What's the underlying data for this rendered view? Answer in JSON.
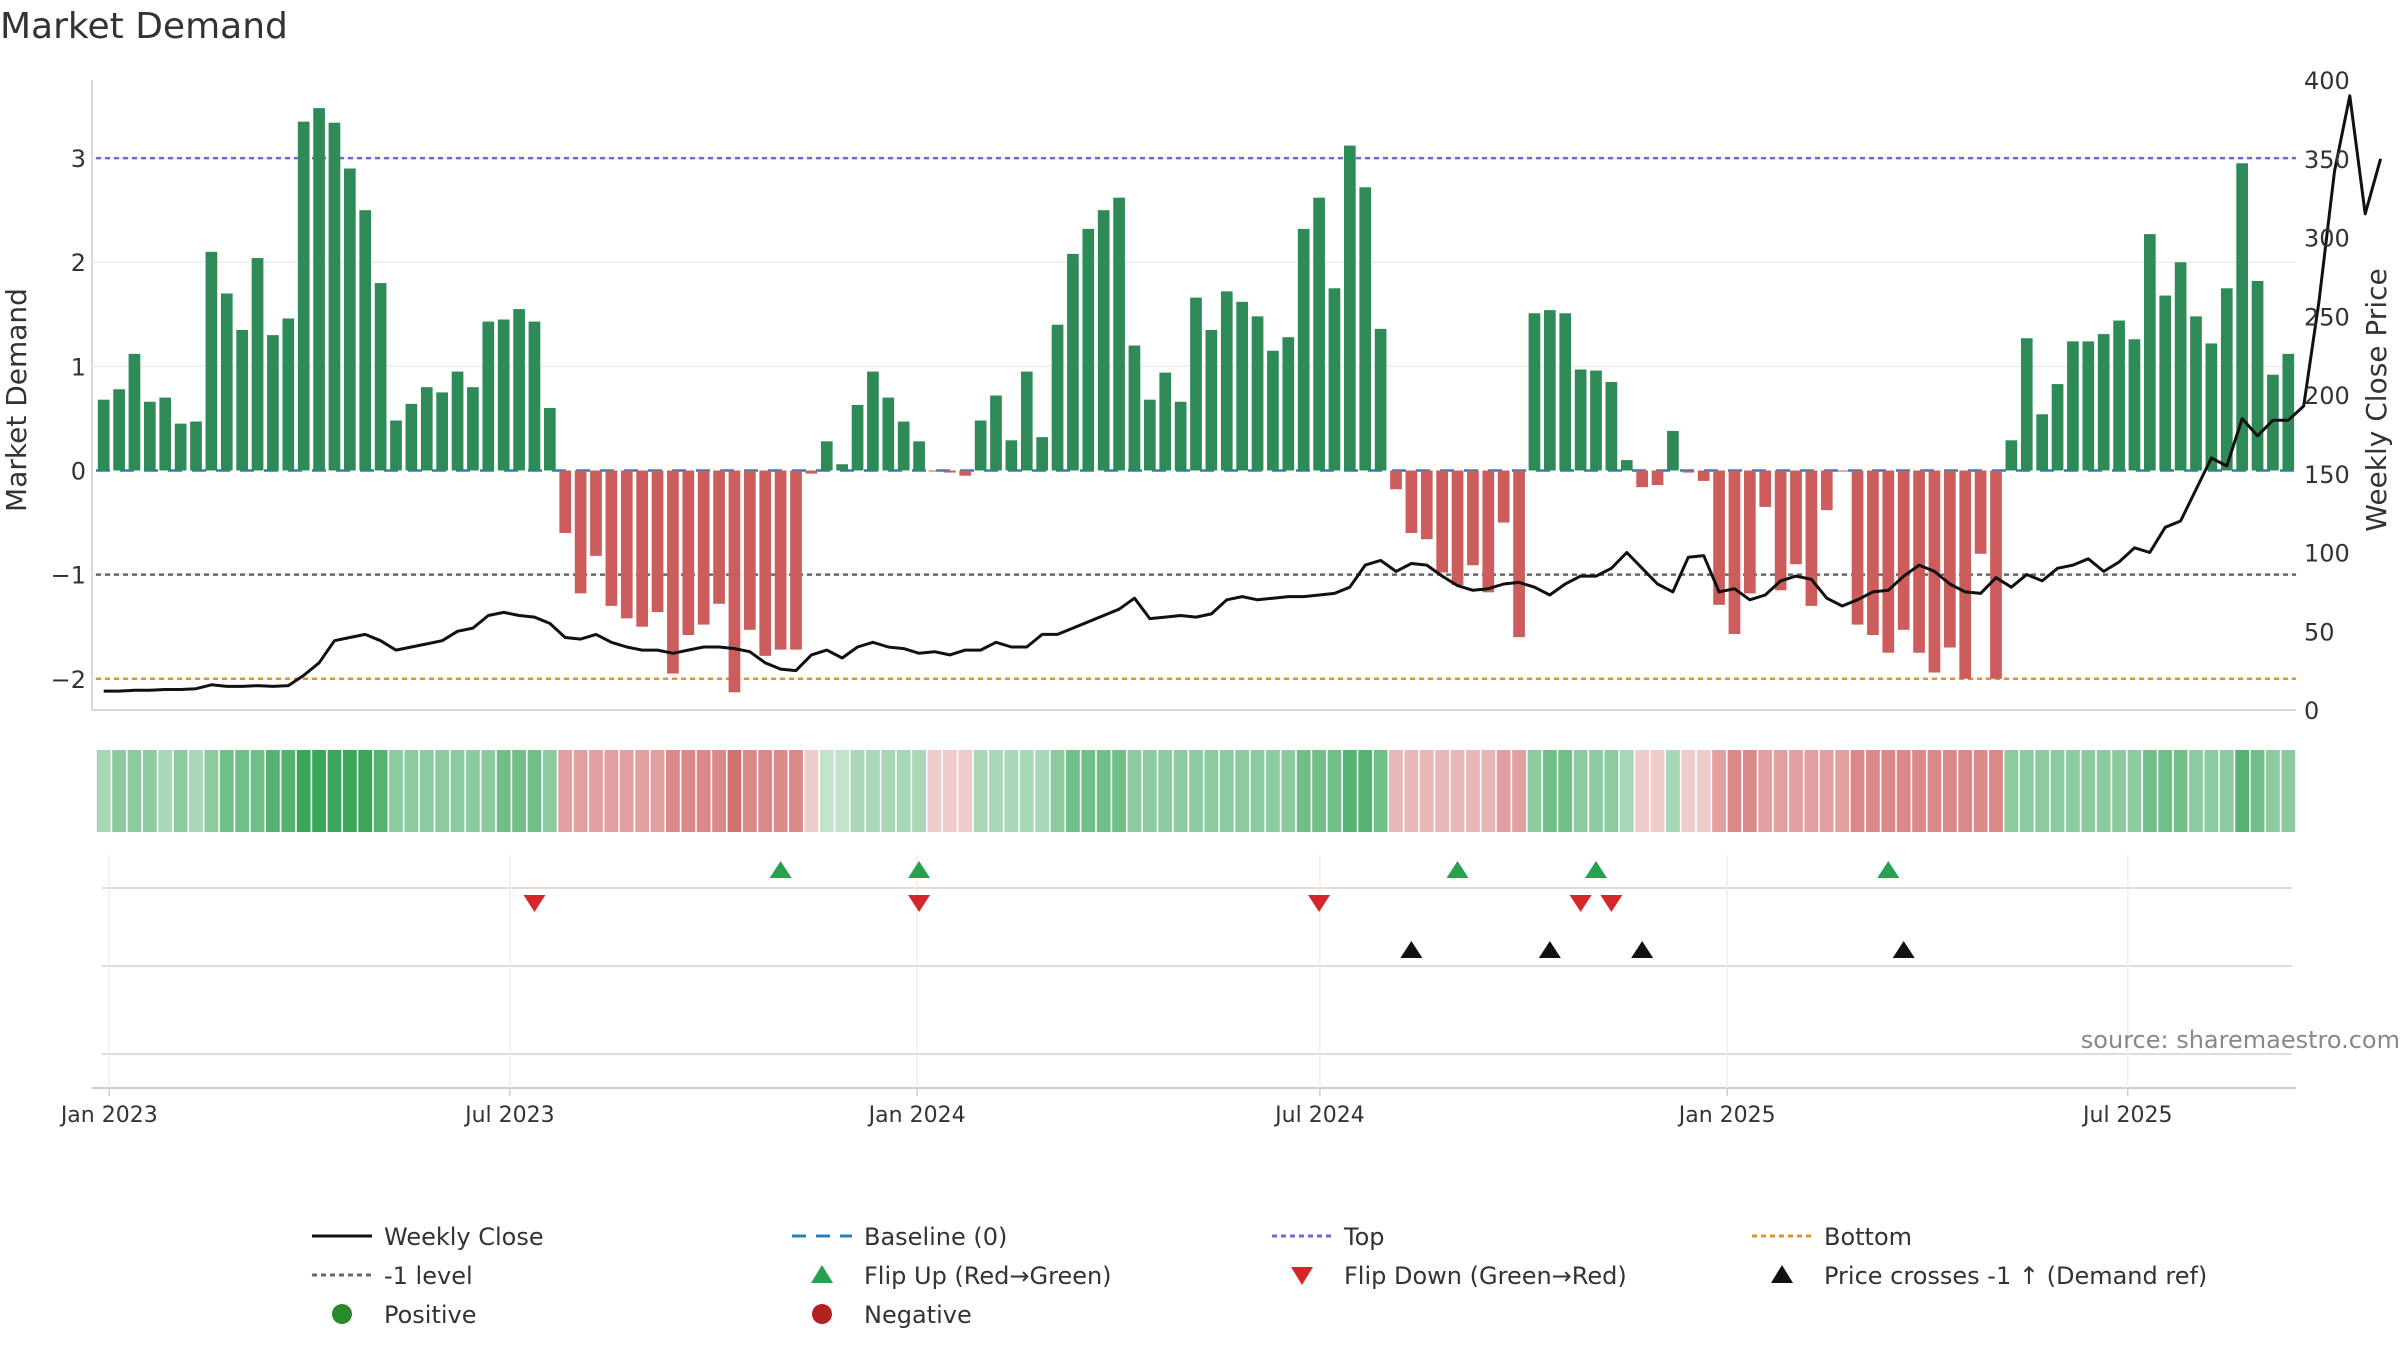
{
  "chart_data": {
    "type": "bar",
    "title": "Market Demand",
    "ylabel": "Market Demand",
    "y2label": "Weekly Close Price",
    "ylim": [
      -2.3,
      3.75
    ],
    "y2lim": [
      0,
      400
    ],
    "yticks": [
      -2,
      -1,
      0,
      1,
      2,
      3
    ],
    "y2ticks": [
      0,
      50,
      100,
      150,
      200,
      250,
      300,
      350,
      400
    ],
    "x_start": "2022-12-26",
    "x_end": "2025-09-15",
    "week_step": 7,
    "xticks": [
      {
        "label": "Jan 2023",
        "date": "2023-01-01"
      },
      {
        "label": "Jul 2023",
        "date": "2023-07-01"
      },
      {
        "label": "Jan 2024",
        "date": "2024-01-01"
      },
      {
        "label": "Jul 2024",
        "date": "2024-07-01"
      },
      {
        "label": "Jan 2025",
        "date": "2025-01-01"
      },
      {
        "label": "Jul 2025",
        "date": "2025-07-01"
      }
    ],
    "reference_lines": {
      "baseline": 0,
      "top": 3,
      "bottom": -2,
      "minus_one": -1
    },
    "series": [
      {
        "name": "Market Demand",
        "type": "bar",
        "values": [
          0.68,
          0.78,
          1.12,
          0.66,
          0.7,
          0.45,
          0.47,
          2.1,
          1.7,
          1.35,
          2.04,
          1.3,
          1.46,
          3.35,
          3.48,
          3.34,
          2.9,
          2.5,
          1.8,
          0.48,
          0.64,
          0.8,
          0.75,
          0.95,
          0.8,
          1.43,
          1.45,
          1.55,
          1.43,
          0.6,
          -0.6,
          -1.18,
          -0.82,
          -1.3,
          -1.42,
          -1.5,
          -1.36,
          -1.95,
          -1.58,
          -1.48,
          -1.28,
          -2.13,
          -1.53,
          -1.78,
          -1.72,
          -1.72,
          -0.03,
          0.28,
          0.06,
          0.63,
          0.95,
          0.7,
          0.47,
          0.28,
          -0.01,
          -0.02,
          -0.05,
          0.48,
          0.72,
          0.29,
          0.95,
          0.32,
          1.4,
          2.08,
          2.32,
          2.5,
          2.62,
          1.2,
          0.68,
          0.94,
          0.66,
          1.66,
          1.35,
          1.72,
          1.62,
          1.48,
          1.15,
          1.28,
          2.32,
          2.62,
          1.75,
          3.12,
          2.72,
          1.36,
          -0.18,
          -0.6,
          -0.66,
          -0.98,
          -1.1,
          -0.91,
          -1.17,
          -0.5,
          -1.6,
          1.51,
          1.54,
          1.51,
          0.97,
          0.96,
          0.85,
          0.1,
          -0.16,
          -0.14,
          0.38,
          -0.02,
          -0.1,
          -1.29,
          -1.57,
          -1.18,
          -0.35,
          -1.15,
          -0.9,
          -1.3,
          -0.38,
          -0.01,
          -1.48,
          -1.58,
          -1.75,
          -1.53,
          -1.75,
          -1.94,
          -1.7,
          -2.0,
          -0.8,
          -2.0,
          0.29,
          1.27,
          0.54,
          0.83,
          1.24,
          1.24,
          1.31,
          1.44,
          1.26,
          2.27,
          1.68,
          2.0,
          1.48,
          1.22,
          1.75,
          2.95,
          1.82,
          0.92,
          1.12
        ]
      },
      {
        "name": "Weekly Close",
        "type": "line",
        "axis": "right",
        "values": [
          12,
          12,
          12.5,
          12.5,
          13,
          13,
          13.5,
          16,
          15,
          15,
          15.5,
          15,
          15.5,
          22,
          30,
          44,
          46,
          48,
          44,
          38,
          40,
          42,
          44,
          50,
          52,
          60,
          62,
          60,
          59,
          55,
          46,
          45,
          48,
          43,
          40,
          38,
          38,
          36,
          38,
          40,
          40,
          39,
          37,
          30,
          26,
          25,
          35,
          38,
          33,
          40,
          43,
          40,
          39,
          36,
          37,
          35,
          38,
          38,
          43,
          40,
          40,
          48,
          48,
          52,
          56,
          60,
          64,
          71,
          58,
          59,
          60,
          59,
          61,
          70,
          72,
          70,
          71,
          72,
          72,
          73,
          74,
          78,
          92,
          95,
          88,
          93,
          92,
          85,
          79,
          76,
          77,
          80,
          81,
          78,
          73,
          80,
          85,
          85,
          90,
          100,
          90,
          80,
          75,
          97,
          98,
          75,
          77,
          70,
          73,
          82,
          85,
          83,
          71,
          66,
          70,
          75,
          76,
          85,
          92,
          88,
          80,
          75,
          74,
          84,
          78,
          86,
          82,
          90,
          92,
          96,
          88,
          94,
          103,
          100,
          116,
          120,
          140,
          160,
          155,
          185,
          174,
          184,
          184,
          193,
          260,
          342,
          390,
          315,
          350
        ]
      }
    ],
    "heat_strip": [
      2,
      3,
      3,
      3,
      2,
      3,
      2,
      3,
      4,
      4,
      4,
      5,
      5,
      6,
      6,
      6,
      6,
      6,
      5,
      3,
      3,
      3,
      3,
      3,
      3,
      3,
      4,
      4,
      4,
      3,
      -3,
      -3,
      -3,
      -3,
      -3,
      -3,
      -3,
      -4,
      -4,
      -4,
      -4,
      -5,
      -4,
      -4,
      -4,
      -4,
      -1,
      1,
      1,
      2,
      2,
      2,
      2,
      2,
      -1,
      -1,
      -1,
      2,
      2,
      2,
      2,
      2,
      3,
      4,
      4,
      4,
      4,
      3,
      3,
      3,
      3,
      3,
      3,
      3,
      3,
      3,
      3,
      3,
      4,
      4,
      4,
      5,
      5,
      4,
      -2,
      -2,
      -2,
      -2,
      -2,
      -2,
      -2,
      -3,
      -3,
      3,
      4,
      4,
      3,
      3,
      3,
      2,
      -1,
      -1,
      2,
      -1,
      -1,
      -3,
      -4,
      -4,
      -3,
      -3,
      -3,
      -3,
      -3,
      -3,
      -4,
      -4,
      -4,
      -4,
      -4,
      -4,
      -4,
      -4,
      -4,
      -4,
      3,
      3,
      3,
      3,
      3,
      3,
      3,
      3,
      3,
      4,
      4,
      4,
      3,
      3,
      3,
      5,
      4,
      3,
      3
    ],
    "markers": {
      "flip_up": [
        44,
        53,
        88,
        97,
        116
      ],
      "flip_down": [
        28,
        53,
        79,
        96,
        98
      ],
      "price_cross": [
        85,
        94,
        100,
        117
      ]
    },
    "source": "source: sharemaestro.com",
    "legend": [
      {
        "label": "Weekly Close",
        "kind": "line",
        "color": "#111111"
      },
      {
        "label": "Baseline (0)",
        "kind": "dash",
        "color": "#2a7fbf"
      },
      {
        "label": "Top",
        "kind": "dot",
        "color": "#6b6bd6"
      },
      {
        "label": "Bottom",
        "kind": "dot",
        "color": "#e0952a"
      },
      {
        "label": "-1 level",
        "kind": "dot",
        "color": "#666677"
      },
      {
        "label": "Flip Up (Red→Green)",
        "kind": "tri-up",
        "color": "#27a04f"
      },
      {
        "label": "Flip Down (Green→Red)",
        "kind": "tri-down",
        "color": "#d62728"
      },
      {
        "label": "Price crosses -1 ↑ (Demand ref)",
        "kind": "tri-up",
        "color": "#111111"
      },
      {
        "label": "Positive",
        "kind": "circle",
        "color": "#2a8a2a"
      },
      {
        "label": "Negative",
        "kind": "circle",
        "color": "#b22222"
      }
    ],
    "colors": {
      "positive": "#2e8b57",
      "negative": "#cd5c5c"
    }
  }
}
